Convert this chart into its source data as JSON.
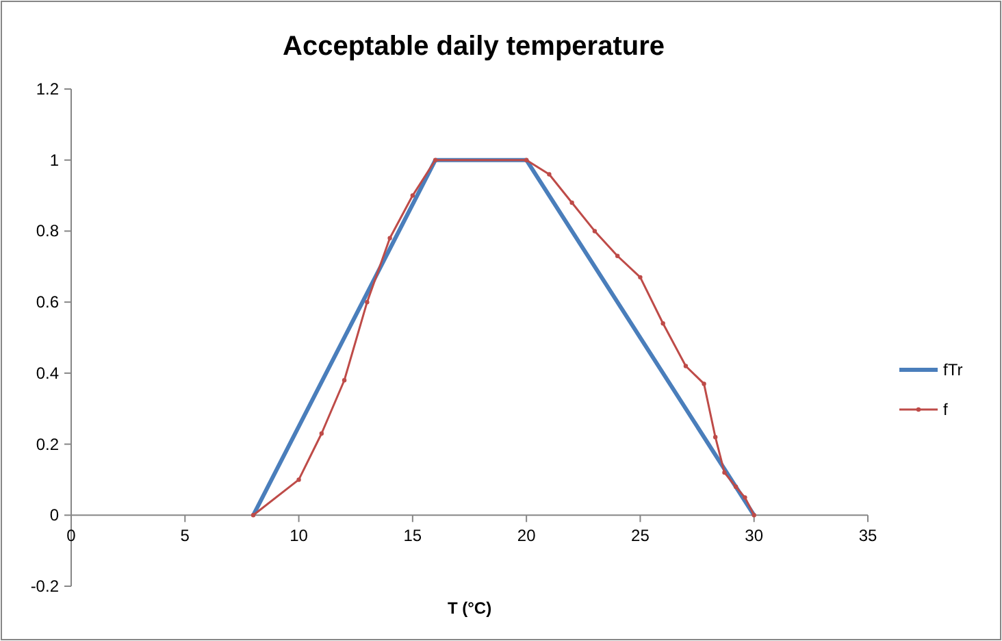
{
  "chart_data": {
    "type": "line",
    "title": "Acceptable daily temperature",
    "xlabel": "T (°C)",
    "xlim": [
      0,
      35
    ],
    "xticks": [
      0,
      5,
      10,
      15,
      20,
      25,
      30,
      35
    ],
    "ylim": [
      -0.2,
      1.2
    ],
    "yticks": [
      -0.2,
      0,
      0.2,
      0.4,
      0.6,
      0.8,
      1,
      1.2
    ],
    "grid": false,
    "legend": "right",
    "series": [
      {
        "name": "fTr",
        "color": "#4a7ebb",
        "x": [
          8,
          16,
          20,
          30
        ],
        "values": [
          0,
          1,
          1,
          0
        ],
        "marker": "none"
      },
      {
        "name": "f",
        "color": "#be4b48",
        "x": [
          8,
          10,
          11,
          12,
          13,
          14,
          15,
          16,
          20,
          21,
          22,
          23,
          24,
          25,
          26,
          27,
          27.8,
          28.3,
          28.7,
          29.2,
          29.6,
          30
        ],
        "values": [
          0,
          0.1,
          0.23,
          0.38,
          0.6,
          0.78,
          0.9,
          1,
          1,
          0.96,
          0.88,
          0.8,
          0.73,
          0.67,
          0.54,
          0.42,
          0.37,
          0.22,
          0.12,
          0.08,
          0.05,
          0
        ],
        "marker": "circle"
      }
    ]
  }
}
